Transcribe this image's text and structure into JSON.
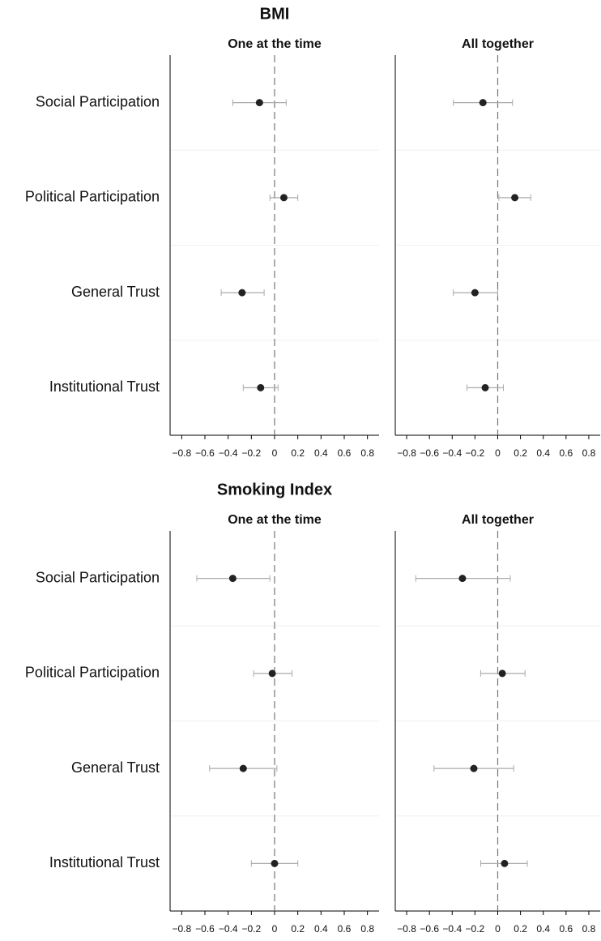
{
  "chart_data": [
    {
      "type": "dot-whisker",
      "title": "BMI",
      "categories": [
        "Social Participation",
        "Political Participation",
        "General Trust",
        "Institutional Trust"
      ],
      "xlim": [
        -0.9,
        0.9
      ],
      "xticks": [
        {
          "value": -0.8,
          "label": "−0.8"
        },
        {
          "value": -0.6,
          "label": "−0.6"
        },
        {
          "value": -0.4,
          "label": "−0.4"
        },
        {
          "value": -0.2,
          "label": "−0.2"
        },
        0,
        0.2,
        0.4,
        0.6,
        0.8
      ],
      "color": "#222222",
      "whisker_color": "#aaaaaa",
      "panels": [
        {
          "subtitle": "One at the time",
          "values": [
            -0.13,
            0.08,
            -0.28,
            -0.12
          ],
          "lower": [
            -0.36,
            -0.04,
            -0.46,
            -0.27
          ],
          "upper": [
            0.1,
            0.2,
            -0.09,
            0.03
          ]
        },
        {
          "subtitle": "All together",
          "values": [
            -0.13,
            0.15,
            -0.2,
            -0.11
          ],
          "lower": [
            -0.39,
            0.01,
            -0.39,
            -0.27
          ],
          "upper": [
            0.13,
            0.29,
            0.0,
            0.05
          ]
        }
      ]
    },
    {
      "type": "dot-whisker",
      "title": "Smoking Index",
      "categories": [
        "Social Participation",
        "Political Participation",
        "General Trust",
        "Institutional Trust"
      ],
      "xlim": [
        -0.9,
        0.9
      ],
      "xticks": [
        {
          "value": -0.8,
          "label": "−0.8"
        },
        {
          "value": -0.6,
          "label": "−0.6"
        },
        {
          "value": -0.4,
          "label": "−0.4"
        },
        {
          "value": -0.2,
          "label": "−0.2"
        },
        0,
        0.2,
        0.4,
        0.6,
        0.8
      ],
      "color": "#222222",
      "whisker_color": "#aaaaaa",
      "panels": [
        {
          "subtitle": "One at the time",
          "values": [
            -0.36,
            -0.02,
            -0.27,
            0.0
          ],
          "lower": [
            -0.67,
            -0.18,
            -0.56,
            -0.2
          ],
          "upper": [
            -0.04,
            0.15,
            0.02,
            0.2
          ]
        },
        {
          "subtitle": "All together",
          "values": [
            -0.31,
            0.04,
            -0.21,
            0.06
          ],
          "lower": [
            -0.72,
            -0.15,
            -0.56,
            -0.15
          ],
          "upper": [
            0.11,
            0.24,
            0.14,
            0.26
          ]
        }
      ]
    }
  ]
}
